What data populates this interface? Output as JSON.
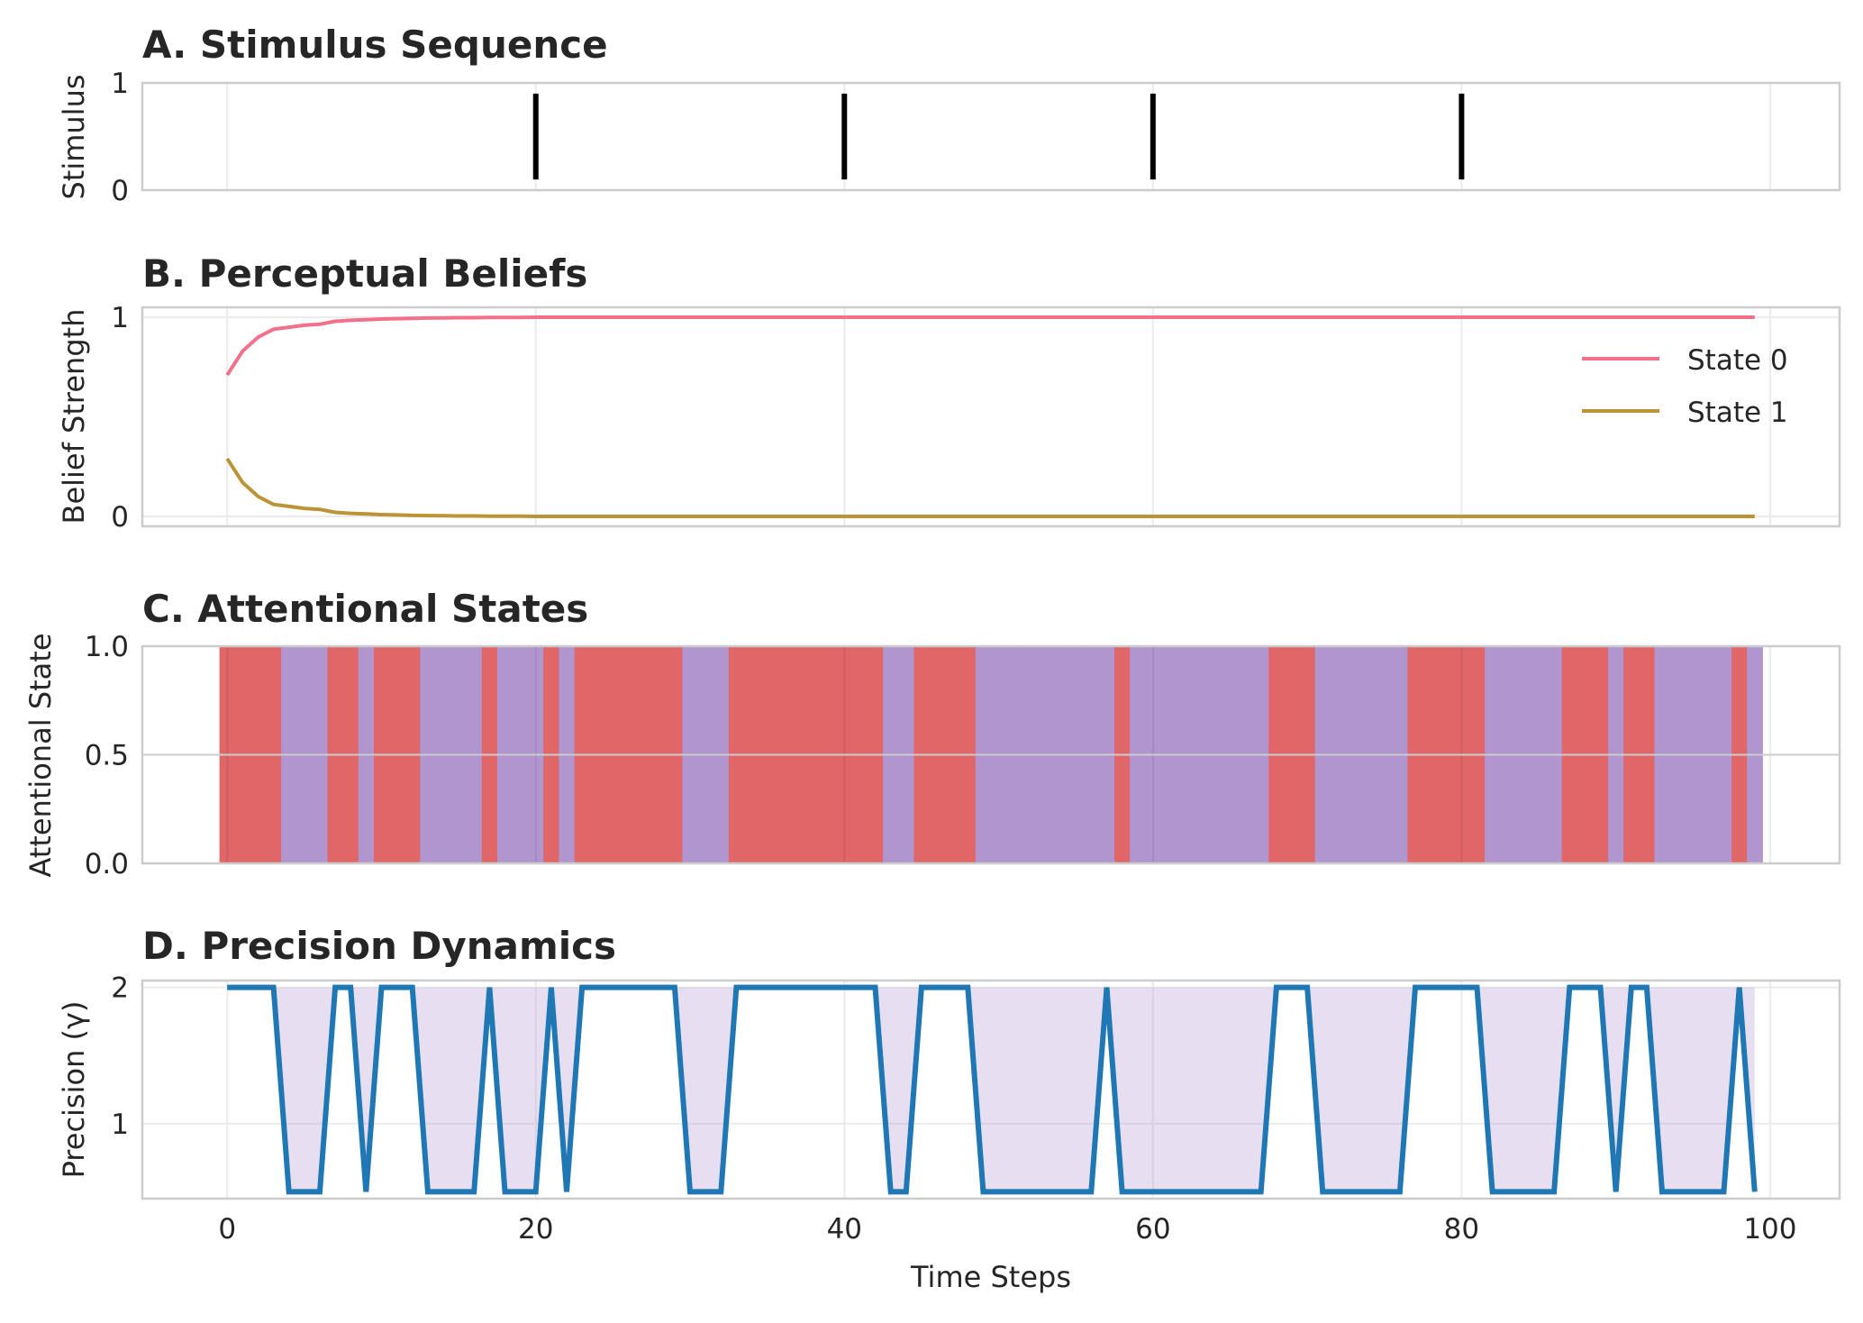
{
  "figure": {
    "xlabel": "Time Steps",
    "x_ticks": [
      0,
      20,
      40,
      60,
      80,
      100
    ]
  },
  "chart_data": [
    {
      "type": "bar",
      "title": "A. Stimulus Sequence",
      "ylabel": "Stimulus",
      "xlim": [
        -5.5,
        104.5
      ],
      "ylim": [
        0,
        1
      ],
      "y_ticks": [
        0,
        1
      ],
      "stimulus_times": [
        20,
        40,
        60,
        80
      ],
      "stimulus_color": "#000000",
      "grid": true
    },
    {
      "type": "line",
      "title": "B. Perceptual Beliefs",
      "ylabel": "Belief Strength",
      "xlim": [
        -5.5,
        104.5
      ],
      "ylim": [
        -0.05,
        1.05
      ],
      "y_ticks": [
        0,
        1
      ],
      "legend_position": "upper-right",
      "grid": true,
      "x": [
        0,
        1,
        2,
        3,
        4,
        5,
        6,
        7,
        8,
        9,
        10,
        11,
        12,
        13,
        14,
        15,
        16,
        17,
        18,
        19,
        20,
        21,
        22,
        23,
        24,
        25,
        26,
        27,
        28,
        29,
        30,
        31,
        32,
        33,
        34,
        35,
        36,
        37,
        38,
        39,
        40,
        41,
        42,
        43,
        44,
        45,
        46,
        47,
        48,
        49,
        50,
        51,
        52,
        53,
        54,
        55,
        56,
        57,
        58,
        59,
        60,
        61,
        62,
        63,
        64,
        65,
        66,
        67,
        68,
        69,
        70,
        71,
        72,
        73,
        74,
        75,
        76,
        77,
        78,
        79,
        80,
        81,
        82,
        83,
        84,
        85,
        86,
        87,
        88,
        89,
        90,
        91,
        92,
        93,
        94,
        95,
        96,
        97,
        98,
        99
      ],
      "series": [
        {
          "name": "State 0",
          "color": "#f3708a",
          "values": [
            0.71,
            0.83,
            0.9,
            0.94,
            0.95,
            0.96,
            0.965,
            0.98,
            0.985,
            0.988,
            0.991,
            0.993,
            0.995,
            0.996,
            0.997,
            0.998,
            0.998,
            0.999,
            0.999,
            0.999,
            1,
            1,
            1,
            1,
            1,
            1,
            1,
            1,
            1,
            1,
            1,
            1,
            1,
            1,
            1,
            1,
            1,
            1,
            1,
            1,
            1,
            1,
            1,
            1,
            1,
            1,
            1,
            1,
            1,
            1,
            1,
            1,
            1,
            1,
            1,
            1,
            1,
            1,
            1,
            1,
            1,
            1,
            1,
            1,
            1,
            1,
            1,
            1,
            1,
            1,
            1,
            1,
            1,
            1,
            1,
            1,
            1,
            1,
            1,
            1,
            1,
            1,
            1,
            1,
            1,
            1,
            1,
            1,
            1,
            1,
            1,
            1,
            1,
            1,
            1,
            1,
            1,
            1,
            1,
            1
          ]
        },
        {
          "name": "State 1",
          "color": "#ba9436",
          "values": [
            0.29,
            0.17,
            0.1,
            0.06,
            0.05,
            0.04,
            0.035,
            0.02,
            0.015,
            0.012,
            0.009,
            0.007,
            0.005,
            0.004,
            0.003,
            0.002,
            0.002,
            0.001,
            0.001,
            0.001,
            0,
            0,
            0,
            0,
            0,
            0,
            0,
            0,
            0,
            0,
            0,
            0,
            0,
            0,
            0,
            0,
            0,
            0,
            0,
            0,
            0,
            0,
            0,
            0,
            0,
            0,
            0,
            0,
            0,
            0,
            0,
            0,
            0,
            0,
            0,
            0,
            0,
            0,
            0,
            0,
            0,
            0,
            0,
            0,
            0,
            0,
            0,
            0,
            0,
            0,
            0,
            0,
            0,
            0,
            0,
            0,
            0,
            0,
            0,
            0,
            0,
            0,
            0,
            0,
            0,
            0,
            0,
            0,
            0,
            0,
            0,
            0,
            0,
            0,
            0,
            0,
            0,
            0,
            0,
            0
          ]
        }
      ]
    },
    {
      "type": "bar",
      "title": "C. Attentional States",
      "ylabel": "Attentional State",
      "xlim": [
        -5.5,
        104.5
      ],
      "ylim": [
        0,
        1
      ],
      "y_ticks": [
        "0.0",
        "0.5",
        "1.0"
      ],
      "grid": true,
      "colors": {
        "0": "#e06668",
        "1": "#b195cf"
      },
      "states": [
        0,
        0,
        0,
        0,
        1,
        1,
        1,
        0,
        0,
        1,
        0,
        0,
        0,
        1,
        1,
        1,
        1,
        0,
        1,
        1,
        1,
        0,
        1,
        0,
        0,
        0,
        0,
        0,
        0,
        0,
        1,
        1,
        1,
        0,
        0,
        0,
        0,
        0,
        0,
        0,
        0,
        0,
        0,
        1,
        1,
        0,
        0,
        0,
        0,
        1,
        1,
        1,
        1,
        1,
        1,
        1,
        1,
        1,
        0,
        1,
        1,
        1,
        1,
        1,
        1,
        1,
        1,
        1,
        0,
        0,
        0,
        1,
        1,
        1,
        1,
        1,
        1,
        0,
        0,
        0,
        0,
        0,
        1,
        1,
        1,
        1,
        1,
        0,
        0,
        0,
        1,
        0,
        0,
        1,
        1,
        1,
        1,
        1,
        0,
        1
      ]
    },
    {
      "type": "line",
      "title": "D. Precision Dynamics",
      "ylabel": "Precision (γ)",
      "xlim": [
        -5.5,
        104.5
      ],
      "ylim": [
        0.45,
        2.05
      ],
      "y_ticks": [
        1,
        2
      ],
      "grid": true,
      "line_color": "#1f77b4",
      "fill_color": "#b195cf",
      "fill_threshold": 2.0,
      "x": [
        0,
        1,
        2,
        3,
        4,
        5,
        6,
        7,
        8,
        9,
        10,
        11,
        12,
        13,
        14,
        15,
        16,
        17,
        18,
        19,
        20,
        21,
        22,
        23,
        24,
        25,
        26,
        27,
        28,
        29,
        30,
        31,
        32,
        33,
        34,
        35,
        36,
        37,
        38,
        39,
        40,
        41,
        42,
        43,
        44,
        45,
        46,
        47,
        48,
        49,
        50,
        51,
        52,
        53,
        54,
        55,
        56,
        57,
        58,
        59,
        60,
        61,
        62,
        63,
        64,
        65,
        66,
        67,
        68,
        69,
        70,
        71,
        72,
        73,
        74,
        75,
        76,
        77,
        78,
        79,
        80,
        81,
        82,
        83,
        84,
        85,
        86,
        87,
        88,
        89,
        90,
        91,
        92,
        93,
        94,
        95,
        96,
        97,
        98,
        99
      ],
      "values": [
        2,
        2,
        2,
        2,
        0.5,
        0.5,
        0.5,
        2,
        2,
        0.5,
        2,
        2,
        2,
        0.5,
        0.5,
        0.5,
        0.5,
        2,
        0.5,
        0.5,
        0.5,
        2,
        0.5,
        2,
        2,
        2,
        2,
        2,
        2,
        2,
        0.5,
        0.5,
        0.5,
        2,
        2,
        2,
        2,
        2,
        2,
        2,
        2,
        2,
        2,
        0.5,
        0.5,
        2,
        2,
        2,
        2,
        0.5,
        0.5,
        0.5,
        0.5,
        0.5,
        0.5,
        0.5,
        0.5,
        2,
        0.5,
        0.5,
        0.5,
        0.5,
        0.5,
        0.5,
        0.5,
        0.5,
        0.5,
        0.5,
        2,
        2,
        2,
        0.5,
        0.5,
        0.5,
        0.5,
        0.5,
        0.5,
        2,
        2,
        2,
        2,
        2,
        0.5,
        0.5,
        0.5,
        0.5,
        0.5,
        2,
        2,
        2,
        0.5,
        2,
        2,
        0.5,
        0.5,
        0.5,
        0.5,
        0.5,
        2,
        0.5
      ]
    }
  ]
}
